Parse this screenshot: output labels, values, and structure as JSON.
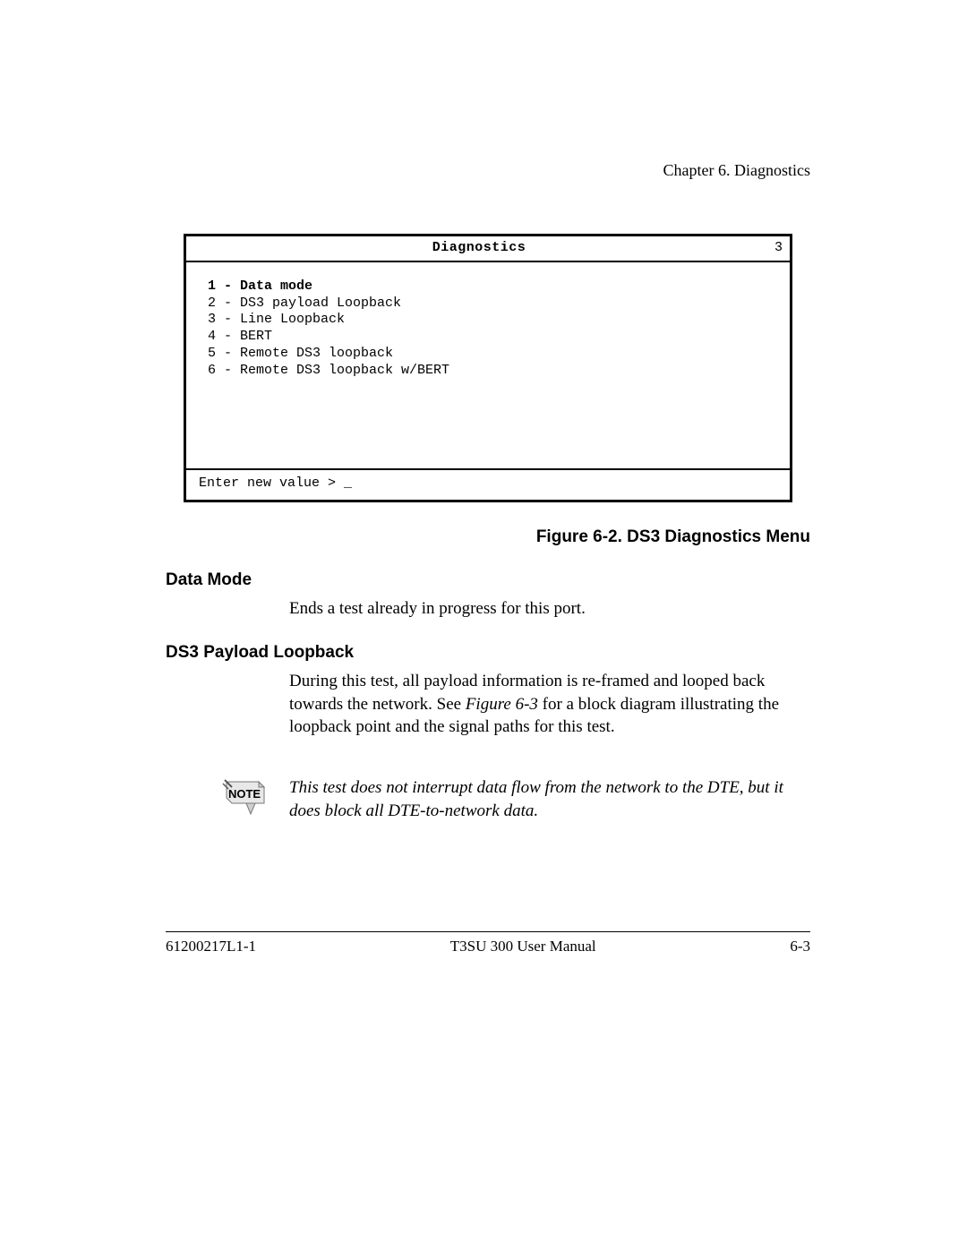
{
  "header": {
    "chapter": "Chapter 6. Diagnostics"
  },
  "terminal": {
    "title": "Diagnostics",
    "page_num": "3",
    "menu": [
      {
        "num": "1",
        "label": "Data mode",
        "bold": true
      },
      {
        "num": "2",
        "label": "DS3 payload Loopback",
        "bold": false
      },
      {
        "num": "3",
        "label": "Line Loopback",
        "bold": false
      },
      {
        "num": "4",
        "label": "BERT",
        "bold": false
      },
      {
        "num": "5",
        "label": "Remote DS3 loopback",
        "bold": false
      },
      {
        "num": "6",
        "label": "Remote DS3 loopback w/BERT",
        "bold": false
      }
    ],
    "prompt": "Enter new value > _"
  },
  "figure_caption": "Figure 6-2.  DS3 Diagnostics Menu",
  "sections": {
    "data_mode": {
      "heading": "Data Mode",
      "body": "Ends a test already in progress for this port."
    },
    "ds3_payload": {
      "heading": "DS3 Payload Loopback",
      "body_pre": "During this test, all payload information is re-framed and looped back towards the network. See ",
      "body_ref": "Figure 6-3",
      "body_post": " for a block diagram illustrating the loopback point and the signal paths for this test."
    }
  },
  "note": {
    "label": "NOTE",
    "text": "This test does not interrupt data flow from the network to the DTE, but it does block all DTE-to-network data."
  },
  "footer": {
    "left": "61200217L1-1",
    "center": "T3SU 300 User Manual",
    "right": "6-3"
  },
  "colors": {
    "text": "#000000",
    "background": "#ffffff",
    "note_icon_fill": "#d9d9d9",
    "note_icon_stroke": "#333333"
  }
}
